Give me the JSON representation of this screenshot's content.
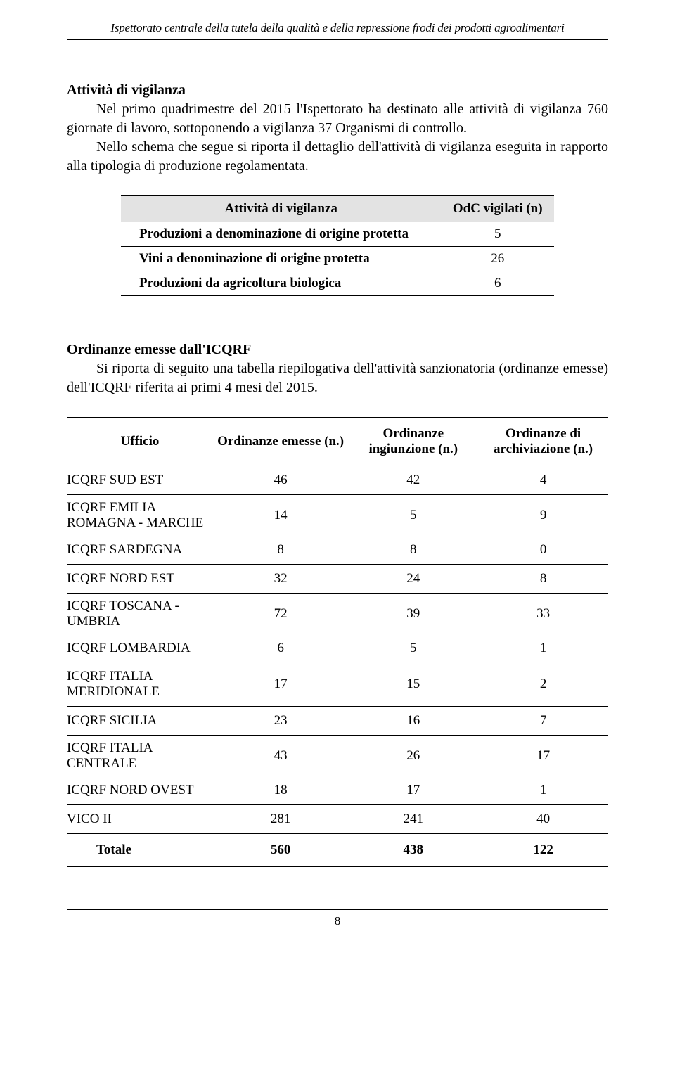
{
  "header": {
    "title": "Ispettorato centrale della tutela della qualità e della repressione frodi dei prodotti agroalimentari"
  },
  "section1": {
    "title": "Attività di vigilanza",
    "p1": "Nel primo quadrimestre del 2015 l'Ispettorato ha destinato alle attività di vigilanza 760 giornate di lavoro, sottoponendo a vigilanza 37 Organismi di controllo.",
    "p2": "Nello schema che segue si riporta il dettaglio dell'attività di vigilanza eseguita in rapporto alla tipologia di produzione regolamentata."
  },
  "table1": {
    "type": "table",
    "columns": [
      "Attività di vigilanza",
      "OdC vigilati (n)"
    ],
    "rows": [
      [
        "Produzioni a denominazione di origine protetta",
        "5"
      ],
      [
        "Vini a denominazione di origine protetta",
        "26"
      ],
      [
        "Produzioni da agricoltura biologica",
        "6"
      ]
    ]
  },
  "section2": {
    "title": "Ordinanze emesse dall'ICQRF",
    "p1": "Si riporta di seguito una tabella riepilogativa dell'attività sanzionatoria (ordinanze emesse) dell'ICQRF riferita ai primi 4 mesi del 2015."
  },
  "table2": {
    "type": "table",
    "columns": [
      "Ufficio",
      "Ordinanze emesse (n.)",
      "Ordinanze ingiunzione (n.)",
      "Ordinanze di archiviazione (n.)"
    ],
    "rows": [
      {
        "office": "ICQRF SUD EST",
        "c1": "46",
        "c2": "42",
        "c3": "4",
        "sep": true
      },
      {
        "office": "ICQRF EMILIA ROMAGNA - MARCHE",
        "c1": "14",
        "c2": "5",
        "c3": "9",
        "sep": false
      },
      {
        "office": "ICQRF SARDEGNA",
        "c1": "8",
        "c2": "8",
        "c3": "0",
        "sep": true
      },
      {
        "office": "ICQRF NORD EST",
        "c1": "32",
        "c2": "24",
        "c3": "8",
        "sep": true
      },
      {
        "office": "ICQRF TOSCANA -UMBRIA",
        "c1": "72",
        "c2": "39",
        "c3": "33",
        "sep": false
      },
      {
        "office": "ICQRF LOMBARDIA",
        "c1": "6",
        "c2": "5",
        "c3": "1",
        "sep": false
      },
      {
        "office": "ICQRF ITALIA MERIDIONALE",
        "c1": "17",
        "c2": "15",
        "c3": "2",
        "sep": true
      },
      {
        "office": "ICQRF SICILIA",
        "c1": "23",
        "c2": "16",
        "c3": "7",
        "sep": true
      },
      {
        "office": "ICQRF ITALIA CENTRALE",
        "c1": "43",
        "c2": "26",
        "c3": "17",
        "sep": false
      },
      {
        "office": "ICQRF NORD OVEST",
        "c1": "18",
        "c2": "17",
        "c3": "1",
        "sep": true
      },
      {
        "office": "VICO II",
        "c1": "281",
        "c2": "241",
        "c3": "40",
        "sep": true
      }
    ],
    "total": {
      "label": "Totale",
      "c1": "560",
      "c2": "438",
      "c3": "122"
    }
  },
  "pageNumber": "8"
}
